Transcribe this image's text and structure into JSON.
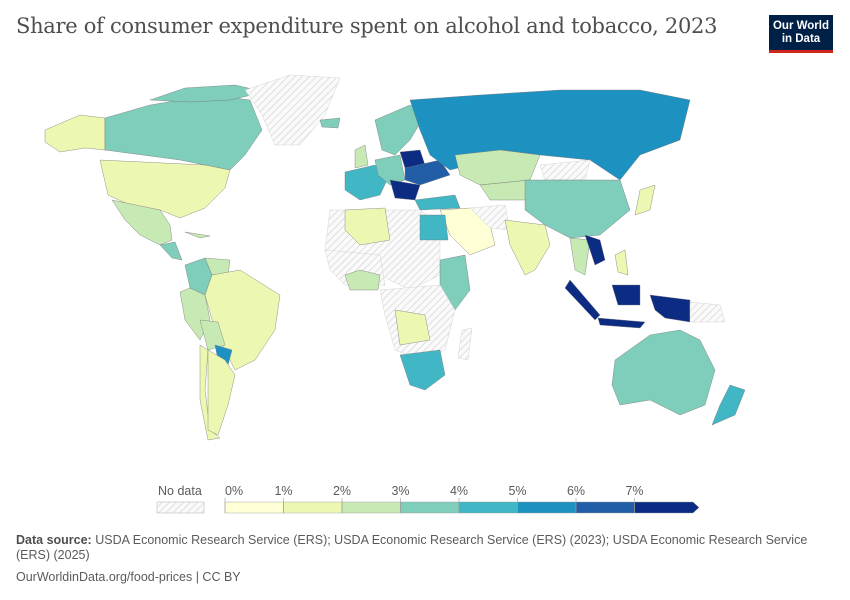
{
  "title": "Share of consumer expenditure spent on alcohol and tobacco, 2023",
  "logo": {
    "line1": "Our World",
    "line2": "in Data"
  },
  "legend": {
    "no_data_label": "No data",
    "ticks": [
      "0%",
      "1%",
      "2%",
      "3%",
      "4%",
      "5%",
      "6%",
      "7%"
    ],
    "bins": [
      {
        "range": "0-1%",
        "color": "#ffffd5"
      },
      {
        "range": "1-2%",
        "color": "#ecf7b1"
      },
      {
        "range": "2-3%",
        "color": "#c7e9b4"
      },
      {
        "range": "3-4%",
        "color": "#7fcdbb"
      },
      {
        "range": "4-5%",
        "color": "#41b6c4"
      },
      {
        "range": "5-6%",
        "color": "#1d91c0"
      },
      {
        "range": "6-7%",
        "color": "#225ea8"
      },
      {
        "range": ">7%",
        "color": "#0c2c84"
      }
    ]
  },
  "footer": {
    "source_label": "Data source:",
    "source_text": "USDA Economic Research Service (ERS); USDA Economic Research Service (ERS) (2023); USDA Economic Research Service (ERS) (2025)",
    "credit": "OurWorldinData.org/food-prices | CC BY"
  }
}
